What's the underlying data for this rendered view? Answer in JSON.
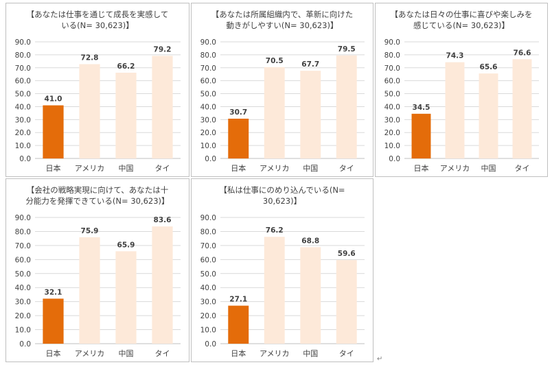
{
  "colors": {
    "japan": "#e46c0a",
    "other": "#fde9d9",
    "grid": "#d9d9d9"
  },
  "chart_data": [
    {
      "type": "bar",
      "title": "【あなたは仕事を通じて成長を実感して\nいる(N= 30,623)】",
      "categories": [
        "日本",
        "アメリカ",
        "中国",
        "タイ"
      ],
      "values": [
        41.0,
        72.8,
        66.2,
        79.2
      ],
      "value_labels": [
        "41.0",
        "72.8",
        "66.2",
        "79.2"
      ],
      "ylim": [
        0,
        90
      ],
      "yticks": [
        "0.0",
        "10.0",
        "20.0",
        "30.0",
        "40.0",
        "50.0",
        "60.0",
        "70.0",
        "80.0",
        "90.0"
      ],
      "grid": true
    },
    {
      "type": "bar",
      "title": "【あなたは所属組織内で、革新に向けた\n動きがしやすい(N= 30,623)】",
      "categories": [
        "日本",
        "アメリカ",
        "中国",
        "タイ"
      ],
      "values": [
        30.7,
        70.5,
        67.7,
        79.5
      ],
      "value_labels": [
        "30.7",
        "70.5",
        "67.7",
        "79.5"
      ],
      "ylim": [
        0,
        90
      ],
      "yticks": [
        "0.0",
        "10.0",
        "20.0",
        "30.0",
        "40.0",
        "50.0",
        "60.0",
        "70.0",
        "80.0",
        "90.0"
      ],
      "grid": true
    },
    {
      "type": "bar",
      "title": "【あなたは日々の仕事に喜びや楽しみを\n感じている(N= 30,623)】",
      "categories": [
        "日本",
        "アメリカ",
        "中国",
        "タイ"
      ],
      "values": [
        34.5,
        74.3,
        65.6,
        76.6
      ],
      "value_labels": [
        "34.5",
        "74.3",
        "65.6",
        "76.6"
      ],
      "ylim": [
        0,
        90
      ],
      "yticks": [
        "0.0",
        "10.0",
        "20.0",
        "30.0",
        "40.0",
        "50.0",
        "60.0",
        "70.0",
        "80.0",
        "90.0"
      ],
      "grid": true
    },
    {
      "type": "bar",
      "title": "【会社の戦略実現に向けて、あなたは十\n分能力を発揮できている(N= 30,623)】",
      "categories": [
        "日本",
        "アメリカ",
        "中国",
        "タイ"
      ],
      "values": [
        32.1,
        75.9,
        65.9,
        83.6
      ],
      "value_labels": [
        "32.1",
        "75.9",
        "65.9",
        "83.6"
      ],
      "ylim": [
        0,
        90
      ],
      "yticks": [
        "0.0",
        "10.0",
        "20.0",
        "30.0",
        "40.0",
        "50.0",
        "60.0",
        "70.0",
        "80.0",
        "90.0"
      ],
      "grid": true
    },
    {
      "type": "bar",
      "title": "【私は仕事にのめり込んでいる(N=\n30,623)】",
      "categories": [
        "日本",
        "アメリカ",
        "中国",
        "タイ"
      ],
      "values": [
        27.1,
        76.2,
        68.8,
        59.6
      ],
      "value_labels": [
        "27.1",
        "76.2",
        "68.8",
        "59.6"
      ],
      "ylim": [
        0,
        90
      ],
      "yticks": [
        "0.0",
        "10.0",
        "20.0",
        "30.0",
        "40.0",
        "50.0",
        "60.0",
        "70.0",
        "80.0",
        "90.0"
      ],
      "grid": true
    }
  ],
  "paragraph_mark": "↵"
}
